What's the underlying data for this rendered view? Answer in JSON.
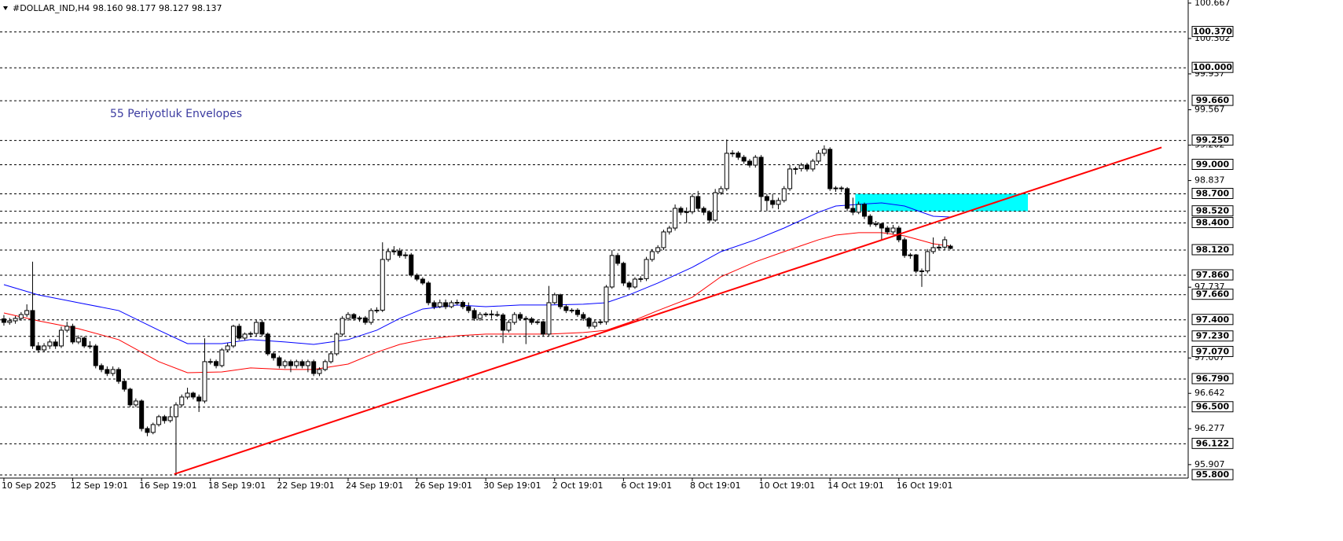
{
  "chart_data": {
    "type": "candlestick",
    "title": "#DOLLAR_IND,H4",
    "quote": [
      "98.160",
      "98.177",
      "98.127",
      "98.137"
    ],
    "annotation": "55 Periyotluk Envelopes",
    "annotation_color": "#3b3ba0",
    "up_color": "#ffffff",
    "down_color": "#000000",
    "xlim": [
      -0.68,
      206.44
    ],
    "ylim": [
      95.768,
      100.699
    ],
    "yticks": [
      100.667,
      100.302,
      99.937,
      99.567,
      99.202,
      98.837,
      97.737,
      97.007,
      96.642,
      96.277,
      95.907
    ],
    "xticks": [
      {
        "value": 0,
        "label": "10 Sep 2025"
      },
      {
        "value": 12,
        "label": "12 Sep 19:01"
      },
      {
        "value": 24,
        "label": "16 Sep 19:01"
      },
      {
        "value": 36,
        "label": "18 Sep 19:01"
      },
      {
        "value": 48,
        "label": "22 Sep 19:01"
      },
      {
        "value": 60,
        "label": "24 Sep 19:01"
      },
      {
        "value": 72,
        "label": "26 Sep 19:01"
      },
      {
        "value": 84,
        "label": "30 Sep 19:01"
      },
      {
        "value": 96,
        "label": "2 Oct 19:01"
      },
      {
        "value": 108,
        "label": "6 Oct 19:01"
      },
      {
        "value": 120,
        "label": "8 Oct 19:01"
      },
      {
        "value": 132,
        "label": "10 Oct 19:01"
      },
      {
        "value": 144,
        "label": "14 Oct 19:01"
      },
      {
        "value": 156,
        "label": "16 Oct 19:01"
      }
    ],
    "levels": [
      {
        "value": 100.37,
        "label": "100.370"
      },
      {
        "value": 100,
        "label": "100.000"
      },
      {
        "value": 99.66,
        "label": "99.660"
      },
      {
        "value": 99.25,
        "label": "99.250"
      },
      {
        "value": 99,
        "label": "99.000"
      },
      {
        "value": 98.7,
        "label": "98.700"
      },
      {
        "value": 98.52,
        "label": "98.520"
      },
      {
        "value": 98.4,
        "label": "98.400"
      },
      {
        "value": 98.12,
        "label": "98.120"
      },
      {
        "value": 97.86,
        "label": "97.860"
      },
      {
        "value": 97.66,
        "label": "97.660"
      },
      {
        "value": 97.4,
        "label": "97.400"
      },
      {
        "value": 97.23,
        "label": "97.230"
      },
      {
        "value": 97.07,
        "label": "97.070"
      },
      {
        "value": 96.79,
        "label": "96.790"
      },
      {
        "value": 96.5,
        "label": "96.500"
      },
      {
        "value": 96.122,
        "label": "96.122"
      },
      {
        "value": 95.8,
        "label": "95.800"
      }
    ],
    "candles": [
      [
        97.41,
        97.45,
        97.34,
        97.374
      ],
      [
        97.374,
        97.42,
        97.35,
        97.39
      ],
      [
        97.39,
        97.44,
        97.36,
        97.415
      ],
      [
        97.415,
        97.48,
        97.39,
        97.455
      ],
      [
        97.455,
        97.56,
        97.43,
        97.496
      ],
      [
        97.496,
        98.0,
        97.1,
        97.131
      ],
      [
        97.131,
        97.17,
        97.06,
        97.09
      ],
      [
        97.09,
        97.16,
        97.07,
        97.131
      ],
      [
        97.131,
        97.2,
        97.1,
        97.172
      ],
      [
        97.172,
        97.2,
        97.1,
        97.131
      ],
      [
        97.131,
        97.33,
        97.11,
        97.293
      ],
      [
        97.293,
        97.38,
        97.27,
        97.334
      ],
      [
        97.334,
        97.36,
        97.15,
        97.172
      ],
      [
        97.172,
        97.24,
        97.15,
        97.212
      ],
      [
        97.212,
        97.23,
        97.11,
        97.131
      ],
      [
        97.131,
        97.18,
        97.1,
        97.13
      ],
      [
        97.13,
        97.15,
        96.9,
        96.928
      ],
      [
        96.928,
        96.95,
        96.86,
        96.888
      ],
      [
        96.888,
        96.92,
        96.82,
        96.847
      ],
      [
        96.847,
        96.92,
        96.82,
        96.888
      ],
      [
        96.888,
        96.91,
        96.74,
        96.766
      ],
      [
        96.766,
        96.79,
        96.66,
        96.685
      ],
      [
        96.685,
        96.7,
        96.5,
        96.523
      ],
      [
        96.523,
        96.59,
        96.5,
        96.563
      ],
      [
        96.563,
        96.58,
        96.25,
        96.279
      ],
      [
        96.279,
        96.3,
        96.2,
        96.239
      ],
      [
        96.239,
        96.34,
        96.22,
        96.32
      ],
      [
        96.32,
        96.42,
        96.3,
        96.401
      ],
      [
        96.401,
        96.42,
        96.33,
        96.361
      ],
      [
        96.361,
        96.5,
        96.34,
        96.401
      ],
      [
        96.401,
        96.55,
        95.8,
        96.523
      ],
      [
        96.523,
        96.63,
        96.5,
        96.604
      ],
      [
        96.604,
        96.7,
        96.58,
        96.644
      ],
      [
        96.644,
        96.66,
        96.58,
        96.604
      ],
      [
        96.604,
        96.63,
        96.45,
        96.563
      ],
      [
        96.563,
        97.21,
        96.54,
        96.969
      ],
      [
        96.969,
        97.0,
        96.94,
        96.97
      ],
      [
        96.97,
        96.99,
        96.9,
        96.928
      ],
      [
        96.928,
        97.11,
        96.91,
        97.09
      ],
      [
        97.09,
        97.16,
        97.07,
        97.131
      ],
      [
        97.131,
        97.35,
        97.11,
        97.334
      ],
      [
        97.334,
        97.36,
        97.19,
        97.212
      ],
      [
        97.212,
        97.27,
        97.19,
        97.253
      ],
      [
        97.253,
        97.28,
        97.22,
        97.26
      ],
      [
        97.26,
        97.4,
        97.23,
        97.374
      ],
      [
        97.374,
        97.4,
        97.23,
        97.253
      ],
      [
        97.253,
        97.27,
        97.03,
        97.05
      ],
      [
        97.05,
        97.07,
        96.98,
        97.009
      ],
      [
        97.009,
        97.03,
        96.9,
        96.928
      ],
      [
        96.928,
        96.99,
        96.9,
        96.969
      ],
      [
        96.969,
        96.99,
        96.86,
        96.928
      ],
      [
        96.928,
        96.99,
        96.9,
        96.969
      ],
      [
        96.969,
        96.99,
        96.9,
        96.928
      ],
      [
        96.928,
        96.99,
        96.86,
        96.969
      ],
      [
        96.969,
        96.99,
        96.82,
        96.847
      ],
      [
        96.847,
        96.91,
        96.82,
        96.888
      ],
      [
        96.888,
        96.99,
        96.87,
        96.969
      ],
      [
        96.969,
        97.07,
        96.95,
        97.05
      ],
      [
        97.05,
        97.27,
        97.03,
        97.253
      ],
      [
        97.253,
        97.44,
        97.23,
        97.415
      ],
      [
        97.415,
        97.48,
        97.39,
        97.455
      ],
      [
        97.455,
        97.47,
        97.39,
        97.415
      ],
      [
        97.415,
        97.44,
        97.38,
        97.42
      ],
      [
        97.42,
        97.44,
        97.35,
        97.374
      ],
      [
        97.374,
        97.52,
        97.35,
        97.496
      ],
      [
        97.496,
        97.53,
        97.47,
        97.5
      ],
      [
        97.5,
        98.2,
        97.48,
        98.023
      ],
      [
        98.023,
        98.14,
        98.0,
        98.104
      ],
      [
        98.104,
        98.16,
        98.07,
        98.11
      ],
      [
        98.11,
        98.14,
        98.04,
        98.064
      ],
      [
        98.064,
        98.1,
        98.03,
        98.07
      ],
      [
        98.07,
        98.09,
        97.84,
        97.861
      ],
      [
        97.861,
        97.88,
        97.8,
        97.82
      ],
      [
        97.82,
        97.84,
        97.76,
        97.78
      ],
      [
        97.78,
        97.8,
        97.55,
        97.577
      ],
      [
        97.577,
        97.6,
        97.51,
        97.536
      ],
      [
        97.536,
        97.61,
        97.52,
        97.577
      ],
      [
        97.577,
        97.61,
        97.51,
        97.536
      ],
      [
        97.536,
        97.6,
        97.52,
        97.577
      ],
      [
        97.577,
        97.61,
        97.55,
        97.58
      ],
      [
        97.58,
        97.6,
        97.51,
        97.536
      ],
      [
        97.536,
        97.58,
        97.47,
        97.496
      ],
      [
        97.496,
        97.52,
        97.39,
        97.415
      ],
      [
        97.415,
        97.48,
        97.39,
        97.455
      ],
      [
        97.455,
        97.48,
        97.43,
        97.46
      ],
      [
        97.46,
        97.5,
        97.41,
        97.455
      ],
      [
        97.455,
        97.49,
        97.43,
        97.45
      ],
      [
        97.45,
        97.47,
        97.16,
        97.293
      ],
      [
        97.293,
        97.4,
        97.27,
        97.374
      ],
      [
        97.374,
        97.48,
        97.35,
        97.455
      ],
      [
        97.455,
        97.48,
        97.39,
        97.415
      ],
      [
        97.415,
        97.44,
        97.15,
        97.41
      ],
      [
        97.41,
        97.43,
        97.35,
        97.374
      ],
      [
        97.374,
        97.4,
        97.35,
        97.38
      ],
      [
        97.38,
        97.39,
        97.23,
        97.253
      ],
      [
        97.253,
        97.75,
        97.23,
        97.577
      ],
      [
        97.577,
        97.68,
        97.56,
        97.658
      ],
      [
        97.658,
        97.67,
        97.51,
        97.536
      ],
      [
        97.536,
        97.56,
        97.47,
        97.496
      ],
      [
        97.496,
        97.52,
        97.47,
        97.5
      ],
      [
        97.5,
        97.52,
        97.43,
        97.455
      ],
      [
        97.455,
        97.48,
        97.39,
        97.415
      ],
      [
        97.415,
        97.43,
        97.31,
        97.334
      ],
      [
        97.334,
        97.4,
        97.31,
        97.374
      ],
      [
        97.374,
        97.4,
        97.35,
        97.38
      ],
      [
        97.38,
        97.76,
        97.35,
        97.739
      ],
      [
        97.739,
        98.12,
        97.72,
        98.064
      ],
      [
        98.064,
        98.09,
        97.96,
        97.983
      ],
      [
        97.983,
        98.0,
        97.75,
        97.78
      ],
      [
        97.78,
        97.8,
        97.71,
        97.739
      ],
      [
        97.739,
        97.84,
        97.72,
        97.82
      ],
      [
        97.82,
        97.85,
        97.79,
        97.825
      ],
      [
        97.825,
        98.05,
        97.8,
        98.023
      ],
      [
        98.023,
        98.13,
        98.0,
        98.104
      ],
      [
        98.104,
        98.17,
        98.08,
        98.145
      ],
      [
        98.145,
        98.33,
        98.12,
        98.307
      ],
      [
        98.307,
        98.37,
        98.28,
        98.347
      ],
      [
        98.347,
        98.59,
        98.32,
        98.55
      ],
      [
        98.55,
        98.57,
        98.48,
        98.51
      ],
      [
        98.51,
        98.56,
        98.4,
        98.515
      ],
      [
        98.515,
        98.7,
        98.49,
        98.672
      ],
      [
        98.672,
        98.73,
        98.52,
        98.55
      ],
      [
        98.55,
        98.57,
        98.48,
        98.51
      ],
      [
        98.51,
        98.53,
        98.4,
        98.429
      ],
      [
        98.429,
        98.75,
        98.41,
        98.712
      ],
      [
        98.712,
        98.78,
        98.69,
        98.753
      ],
      [
        98.753,
        99.26,
        98.73,
        99.118
      ],
      [
        99.118,
        99.15,
        99.08,
        99.12
      ],
      [
        99.12,
        99.14,
        99.05,
        99.077
      ],
      [
        99.077,
        99.1,
        99.01,
        99.037
      ],
      [
        99.037,
        99.06,
        98.97,
        98.996
      ],
      [
        98.996,
        99.1,
        98.97,
        99.077
      ],
      [
        99.077,
        99.1,
        98.52,
        98.672
      ],
      [
        98.672,
        98.7,
        98.52,
        98.631
      ],
      [
        98.631,
        98.7,
        98.55,
        98.591
      ],
      [
        98.591,
        98.66,
        98.54,
        98.631
      ],
      [
        98.631,
        98.78,
        98.61,
        98.753
      ],
      [
        98.753,
        99.0,
        98.73,
        98.956
      ],
      [
        98.956,
        98.98,
        98.9,
        98.96
      ],
      [
        98.96,
        99.02,
        98.93,
        98.996
      ],
      [
        98.996,
        99.02,
        98.93,
        98.956
      ],
      [
        98.956,
        99.06,
        98.93,
        99.037
      ],
      [
        99.037,
        99.15,
        99.01,
        99.118
      ],
      [
        99.118,
        99.2,
        99.09,
        99.159
      ],
      [
        99.159,
        99.18,
        98.73,
        98.753
      ],
      [
        98.753,
        98.78,
        98.72,
        98.76
      ],
      [
        98.76,
        98.78,
        98.72,
        98.753
      ],
      [
        98.753,
        98.77,
        98.52,
        98.55
      ],
      [
        98.55,
        98.66,
        98.48,
        98.51
      ],
      [
        98.51,
        98.62,
        98.49,
        98.591
      ],
      [
        98.591,
        98.61,
        98.44,
        98.469
      ],
      [
        98.469,
        98.49,
        98.36,
        98.388
      ],
      [
        98.388,
        98.42,
        98.36,
        98.39
      ],
      [
        98.39,
        98.4,
        98.22,
        98.347
      ],
      [
        98.347,
        98.37,
        98.28,
        98.307
      ],
      [
        98.307,
        98.38,
        98.28,
        98.347
      ],
      [
        98.347,
        98.37,
        98.2,
        98.226
      ],
      [
        98.226,
        98.25,
        98.04,
        98.064
      ],
      [
        98.064,
        98.09,
        98.03,
        98.07
      ],
      [
        98.07,
        98.08,
        97.88,
        97.902
      ],
      [
        97.902,
        97.93,
        97.74,
        97.905
      ],
      [
        97.905,
        98.13,
        97.88,
        98.104
      ],
      [
        98.104,
        98.25,
        98.08,
        98.145
      ],
      [
        98.145,
        98.18,
        98.12,
        98.15
      ],
      [
        98.15,
        98.26,
        98.12,
        98.226
      ],
      [
        98.16,
        98.177,
        98.127,
        98.137
      ]
    ],
    "series": [
      {
        "color": "#0000ff",
        "x": [
          0,
          6,
          13,
          20,
          27,
          32,
          38,
          43,
          49,
          54,
          60,
          65,
          69,
          73,
          79,
          84,
          90,
          95,
          101,
          105,
          109,
          114,
          120,
          125,
          131,
          136,
          142,
          145,
          149,
          153,
          157,
          160,
          162,
          165
        ],
        "values": [
          97.763,
          97.658,
          97.577,
          97.496,
          97.293,
          97.155,
          97.155,
          97.196,
          97.172,
          97.147,
          97.196,
          97.293,
          97.415,
          97.512,
          97.553,
          97.536,
          97.553,
          97.553,
          97.561,
          97.577,
          97.658,
          97.78,
          97.942,
          98.104,
          98.226,
          98.347,
          98.51,
          98.574,
          98.591,
          98.607,
          98.574,
          98.51,
          98.469,
          98.461
        ]
      },
      {
        "color": "#ff0000",
        "x": [
          0,
          6,
          13,
          20,
          27,
          32,
          38,
          43,
          49,
          54,
          60,
          65,
          69,
          73,
          79,
          84,
          90,
          95,
          101,
          105,
          109,
          114,
          120,
          125,
          131,
          136,
          142,
          145,
          149,
          153,
          157,
          160,
          162,
          165
        ],
        "values": [
          97.471,
          97.39,
          97.309,
          97.196,
          96.969,
          96.855,
          96.863,
          96.904,
          96.888,
          96.888,
          96.944,
          97.066,
          97.147,
          97.196,
          97.236,
          97.253,
          97.253,
          97.253,
          97.269,
          97.293,
          97.374,
          97.496,
          97.633,
          97.845,
          97.999,
          98.104,
          98.226,
          98.274,
          98.299,
          98.299,
          98.266,
          98.218,
          98.185,
          98.161
        ]
      }
    ],
    "trendline": {
      "color": "#ff0000",
      "x": [
        29.7,
        201.8
      ],
      "values": [
        95.809,
        99.179
      ]
    },
    "zone": {
      "color": "#00ffff",
      "x": [
        148.4,
        178.5
      ],
      "y": [
        98.7,
        98.52
      ]
    }
  }
}
